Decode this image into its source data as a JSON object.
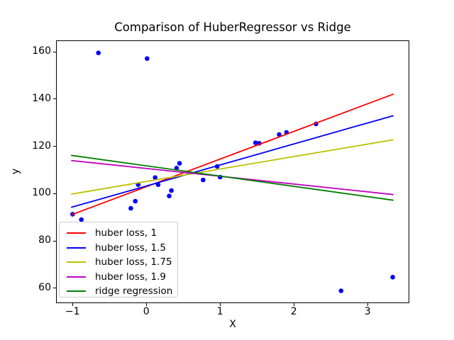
{
  "chart_data": {
    "type": "scatter",
    "title": "Comparison of HuberRegressor vs Ridge",
    "xlabel": "X",
    "ylabel": "y",
    "xlim": [
      -1.214,
      3.555
    ],
    "ylim": [
      54.0,
      164.5
    ],
    "x_ticks": [
      -1,
      0,
      1,
      2,
      3
    ],
    "x_tick_labels": [
      "−1",
      "0",
      "1",
      "2",
      "3"
    ],
    "y_ticks": [
      60,
      80,
      100,
      120,
      140,
      160
    ],
    "y_tick_labels": [
      "60",
      "80",
      "100",
      "120",
      "140",
      "160"
    ],
    "grid": false,
    "legend_position": "lower left",
    "scatter": {
      "name": "data-points",
      "color": "#0000ff",
      "points": [
        [
          -1.0,
          91.3
        ],
        [
          -0.88,
          89.0
        ],
        [
          -0.65,
          159.5
        ],
        [
          -0.21,
          93.8
        ],
        [
          -0.15,
          96.8
        ],
        [
          -0.11,
          103.8
        ],
        [
          0.01,
          157.1
        ],
        [
          0.12,
          106.8
        ],
        [
          0.16,
          103.8
        ],
        [
          0.31,
          99.0
        ],
        [
          0.34,
          101.3
        ],
        [
          0.41,
          110.8
        ],
        [
          0.45,
          112.8
        ],
        [
          0.77,
          105.8
        ],
        [
          0.96,
          111.5
        ],
        [
          1.0,
          107.0
        ],
        [
          1.48,
          121.5
        ],
        [
          1.53,
          121.3
        ],
        [
          1.8,
          125.0
        ],
        [
          1.9,
          125.9
        ],
        [
          2.3,
          129.5
        ],
        [
          2.64,
          58.9
        ],
        [
          3.34,
          64.7
        ]
      ]
    },
    "series": [
      {
        "name": "huber loss, 1",
        "color": "#ff0000",
        "x": [
          -1.02,
          3.35
        ],
        "y": [
          91.0,
          142.1
        ]
      },
      {
        "name": "huber loss, 1.5",
        "color": "#0000ff",
        "x": [
          -1.02,
          3.35
        ],
        "y": [
          94.2,
          133.0
        ]
      },
      {
        "name": "huber loss, 1.75",
        "color": "#bfbf00",
        "x": [
          -1.02,
          3.35
        ],
        "y": [
          99.8,
          122.8
        ]
      },
      {
        "name": "huber loss, 1.9",
        "color": "#bf00bf",
        "x": [
          -1.02,
          3.35
        ],
        "y": [
          114.0,
          99.6
        ]
      },
      {
        "name": "ridge regression",
        "color": "#008000",
        "x": [
          -1.02,
          3.35
        ],
        "y": [
          116.2,
          97.2
        ]
      }
    ],
    "legend": {
      "entries": [
        "huber loss, 1",
        "huber loss, 1.5",
        "huber loss, 1.75",
        "huber loss, 1.9",
        "ridge regression"
      ]
    }
  }
}
